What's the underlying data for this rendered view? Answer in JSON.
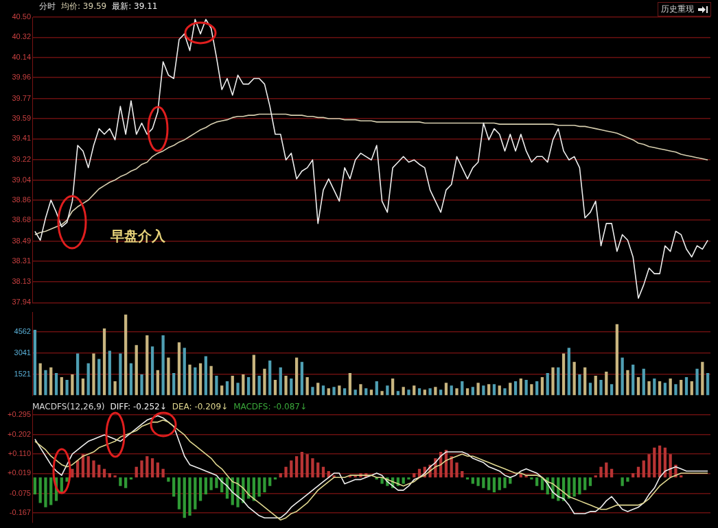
{
  "chart_data": [
    {
      "type": "line",
      "title": "分时",
      "legend": "top left",
      "grid": "y",
      "tick_labels": "y",
      "marker": "none",
      "annotations": [
        "早盘介入",
        "历史重现"
      ],
      "categories": [
        null,
        null,
        null,
        null,
        null,
        null,
        null,
        null,
        null,
        null,
        null,
        null,
        null,
        null,
        null,
        null,
        null,
        null,
        null,
        null,
        null,
        null,
        null,
        null,
        null,
        null,
        null,
        null,
        null,
        null,
        null,
        null,
        null,
        null,
        null,
        null,
        null,
        null,
        null,
        null,
        null,
        null,
        null,
        null,
        null,
        null,
        null,
        null,
        null,
        null,
        null,
        null,
        null,
        null,
        null,
        null,
        null,
        null,
        null,
        null,
        null,
        null,
        null,
        null,
        null,
        null,
        null,
        null,
        null,
        null,
        null,
        null,
        null,
        null,
        null,
        null,
        null,
        null,
        null,
        null,
        null,
        null,
        null,
        null,
        null,
        null,
        null,
        null,
        null,
        null,
        null,
        null,
        null,
        null,
        null,
        null,
        null,
        null,
        null,
        null,
        null,
        null,
        null,
        null,
        null,
        null,
        null,
        null,
        null,
        null,
        null,
        null,
        null,
        null,
        null,
        null,
        null,
        null,
        null,
        null,
        null,
        null,
        null,
        null,
        null,
        null,
        null
      ],
      "ylim": [
        37.94,
        40.5
      ],
      "yticks": [
        {
          "value": 40.5,
          "label": "40.50"
        },
        40.32,
        40.14,
        39.96,
        39.77,
        39.59,
        39.41,
        39.22,
        39.04,
        38.86,
        38.68,
        38.49,
        38.31,
        38.13,
        37.94
      ],
      "series": [
        {
          "name": "均价: 39.59",
          "color": "#d8d0b0",
          "values": [
            38.55,
            38.57,
            38.58,
            38.6,
            38.62,
            38.64,
            38.68,
            38.76,
            38.8,
            38.83,
            38.86,
            38.91,
            38.96,
            38.99,
            39.02,
            39.04,
            39.07,
            39.09,
            39.12,
            39.14,
            39.18,
            39.2,
            39.25,
            39.28,
            39.3,
            39.33,
            39.35,
            39.38,
            39.4,
            39.43,
            39.46,
            39.49,
            39.51,
            39.54,
            39.56,
            39.57,
            39.58,
            39.6,
            39.61,
            39.61,
            39.62,
            39.62,
            39.63,
            39.63,
            39.63,
            39.63,
            39.63,
            39.63,
            39.62,
            39.62,
            39.62,
            39.61,
            39.61,
            39.6,
            39.6,
            39.59,
            39.59,
            39.59,
            39.58,
            39.58,
            39.58,
            39.57,
            39.57,
            39.57,
            39.56,
            39.56,
            39.56,
            39.56,
            39.56,
            39.56,
            39.56,
            39.56,
            39.56,
            39.55,
            39.55,
            39.55,
            39.55,
            39.55,
            39.55,
            39.55,
            39.55,
            39.55,
            39.55,
            39.55,
            39.55,
            39.55,
            39.55,
            39.54,
            39.54,
            39.54,
            39.54,
            39.54,
            39.54,
            39.54,
            39.54,
            39.54,
            39.54,
            39.54,
            39.53,
            39.53,
            39.53,
            39.53,
            39.52,
            39.52,
            39.51,
            39.5,
            39.49,
            39.48,
            39.47,
            39.46,
            39.44,
            39.42,
            39.4,
            39.37,
            39.36,
            39.34,
            39.33,
            39.32,
            39.31,
            39.3,
            39.29,
            39.27,
            39.26,
            39.25,
            39.24,
            39.23,
            39.22
          ]
        },
        {
          "name": "最新: 39.11",
          "color": "#eeeeee",
          "values": [
            38.58,
            38.5,
            38.7,
            38.86,
            38.75,
            38.62,
            38.66,
            38.85,
            39.35,
            39.3,
            39.15,
            39.35,
            39.5,
            39.45,
            39.5,
            39.4,
            39.7,
            39.45,
            39.75,
            39.45,
            39.55,
            39.45,
            39.5,
            39.65,
            40.1,
            39.98,
            39.95,
            40.3,
            40.35,
            40.2,
            40.48,
            40.35,
            40.48,
            40.4,
            40.14,
            39.85,
            39.95,
            39.8,
            39.98,
            39.9,
            39.9,
            39.95,
            39.95,
            39.9,
            39.7,
            39.45,
            39.45,
            39.22,
            39.28,
            39.05,
            39.12,
            39.15,
            39.22,
            38.65,
            38.95,
            39.05,
            38.95,
            38.85,
            39.15,
            39.05,
            39.22,
            39.28,
            39.25,
            39.22,
            39.35,
            38.85,
            38.75,
            39.15,
            39.2,
            39.25,
            39.2,
            39.22,
            39.18,
            39.15,
            38.95,
            38.85,
            38.75,
            38.95,
            39.0,
            39.25,
            39.15,
            39.05,
            39.15,
            39.2,
            39.55,
            39.4,
            39.5,
            39.45,
            39.3,
            39.45,
            39.3,
            39.45,
            39.3,
            39.2,
            39.25,
            39.25,
            39.2,
            39.4,
            39.5,
            39.3,
            39.22,
            39.25,
            39.15,
            38.7,
            38.75,
            38.85,
            38.45,
            38.65,
            38.65,
            38.4,
            38.55,
            38.5,
            38.35,
            37.98,
            38.1,
            38.25,
            38.2,
            38.2,
            38.45,
            38.4,
            38.58,
            38.55,
            38.42,
            38.35,
            38.45,
            38.42,
            38.5
          ]
        }
      ]
    },
    {
      "type": "bar",
      "grid": "y",
      "tick_labels": "y",
      "categories": [
        null,
        null,
        null,
        null,
        null,
        null,
        null,
        null,
        null,
        null,
        null,
        null,
        null,
        null,
        null,
        null,
        null,
        null,
        null,
        null,
        null,
        null,
        null,
        null,
        null,
        null,
        null,
        null,
        null,
        null,
        null,
        null,
        null,
        null,
        null,
        null,
        null,
        null,
        null,
        null,
        null,
        null,
        null,
        null,
        null,
        null,
        null,
        null,
        null,
        null,
        null,
        null,
        null,
        null,
        null,
        null,
        null,
        null,
        null,
        null,
        null,
        null,
        null,
        null,
        null,
        null,
        null,
        null,
        null,
        null,
        null,
        null,
        null,
        null,
        null,
        null,
        null,
        null,
        null,
        null,
        null,
        null,
        null,
        null,
        null,
        null,
        null,
        null,
        null,
        null,
        null,
        null,
        null,
        null,
        null,
        null,
        null,
        null,
        null,
        null,
        null,
        null,
        null,
        null,
        null,
        null,
        null,
        null,
        null,
        null,
        null,
        null,
        null,
        null,
        null,
        null,
        null,
        null,
        null,
        null,
        null,
        null,
        null,
        null,
        null,
        null,
        null
      ],
      "ylim": [
        0,
        5950
      ],
      "yticks": [
        1521,
        3041,
        4562
      ],
      "values": [
        4700,
        2300,
        1800,
        2000,
        1600,
        1300,
        1100,
        1500,
        3000,
        1200,
        2300,
        3000,
        2600,
        4800,
        3200,
        1000,
        3000,
        5800,
        2300,
        3600,
        1500,
        4300,
        3500,
        1800,
        4300,
        2700,
        1600,
        3800,
        3400,
        2200,
        2000,
        2300,
        2800,
        2100,
        1400,
        700,
        1000,
        1400,
        900,
        1500,
        1300,
        2900,
        1400,
        1900,
        2500,
        1100,
        2000,
        1400,
        1200,
        2700,
        2400,
        1300,
        600,
        900,
        700,
        500,
        600,
        700,
        500,
        1600,
        400,
        800,
        500,
        400,
        1000,
        300,
        700,
        1200,
        300,
        600,
        400,
        700,
        500,
        400,
        500,
        600,
        400,
        900,
        700,
        500,
        1000,
        500,
        600,
        900,
        700,
        800,
        800,
        700,
        500,
        900,
        1000,
        1200,
        1100,
        800,
        1000,
        1300,
        1600,
        2000,
        2000,
        3000,
        3400,
        2400,
        1500,
        2000,
        900,
        1400,
        1100,
        1700,
        800,
        5100,
        2700,
        1800,
        2200,
        1300,
        1900,
        1000,
        1200,
        1000,
        900,
        1200,
        800,
        1100,
        1300,
        1000,
        1900,
        2400,
        1600
      ],
      "colors": [
        "#4f9fb3",
        "#c8b57f",
        "#4f9fb3",
        "#c8b57f",
        "#4f9fb3",
        "#c8b57f",
        "#4f9fb3",
        "#c8b57f",
        "#4f9fb3",
        "#c8b57f",
        "#4f9fb3",
        "#c8b57f",
        "#4f9fb3",
        "#c8b57f",
        "#4f9fb3",
        "#c8b57f",
        "#4f9fb3",
        "#c8b57f",
        "#4f9fb3",
        "#c8b57f",
        "#4f9fb3",
        "#c8b57f",
        "#4f9fb3",
        "#c8b57f",
        "#4f9fb3",
        "#c8b57f",
        "#4f9fb3",
        "#c8b57f",
        "#4f9fb3",
        "#c8b57f",
        "#4f9fb3",
        "#c8b57f",
        "#4f9fb3",
        "#c8b57f",
        "#4f9fb3",
        "#c8b57f",
        "#4f9fb3",
        "#c8b57f",
        "#4f9fb3",
        "#c8b57f",
        "#4f9fb3",
        "#c8b57f",
        "#4f9fb3",
        "#c8b57f",
        "#4f9fb3",
        "#c8b57f",
        "#4f9fb3",
        "#c8b57f",
        "#4f9fb3",
        "#c8b57f",
        "#4f9fb3",
        "#c8b57f",
        "#4f9fb3",
        "#c8b57f",
        "#4f9fb3",
        "#c8b57f",
        "#4f9fb3",
        "#c8b57f",
        "#4f9fb3",
        "#c8b57f",
        "#4f9fb3",
        "#c8b57f",
        "#4f9fb3",
        "#c8b57f",
        "#4f9fb3",
        "#c8b57f",
        "#4f9fb3",
        "#c8b57f",
        "#4f9fb3",
        "#c8b57f",
        "#4f9fb3",
        "#c8b57f",
        "#4f9fb3",
        "#c8b57f",
        "#4f9fb3",
        "#c8b57f",
        "#4f9fb3",
        "#c8b57f",
        "#4f9fb3",
        "#c8b57f",
        "#4f9fb3",
        "#c8b57f",
        "#4f9fb3",
        "#c8b57f",
        "#4f9fb3",
        "#c8b57f",
        "#4f9fb3",
        "#c8b57f",
        "#4f9fb3",
        "#c8b57f",
        "#4f9fb3",
        "#c8b57f",
        "#4f9fb3",
        "#c8b57f",
        "#4f9fb3",
        "#c8b57f",
        "#4f9fb3",
        "#c8b57f",
        "#4f9fb3",
        "#c8b57f",
        "#4f9fb3",
        "#c8b57f",
        "#4f9fb3",
        "#c8b57f",
        "#4f9fb3",
        "#c8b57f",
        "#4f9fb3",
        "#c8b57f",
        "#4f9fb3",
        "#c8b57f",
        "#4f9fb3",
        "#c8b57f",
        "#4f9fb3",
        "#c8b57f",
        "#4f9fb3",
        "#c8b57f",
        "#4f9fb3",
        "#c8b57f",
        "#4f9fb3",
        "#c8b57f",
        "#4f9fb3",
        "#c8b57f",
        "#4f9fb3",
        "#c8b57f",
        "#4f9fb3",
        "#c8b57f",
        "#4f9fb3"
      ]
    },
    {
      "type": "bar",
      "title": "MACDFS(12,26,9)",
      "legend": "top left",
      "grid": "y",
      "tick_labels": "y",
      "marker": "none",
      "categories": [
        null,
        null,
        null,
        null,
        null,
        null,
        null,
        null,
        null,
        null,
        null,
        null,
        null,
        null,
        null,
        null,
        null,
        null,
        null,
        null,
        null,
        null,
        null,
        null,
        null,
        null,
        null,
        null,
        null,
        null,
        null,
        null,
        null,
        null,
        null,
        null,
        null,
        null,
        null,
        null,
        null,
        null,
        null,
        null,
        null,
        null,
        null,
        null,
        null,
        null,
        null,
        null,
        null,
        null,
        null,
        null,
        null,
        null,
        null,
        null,
        null,
        null,
        null,
        null,
        null,
        null,
        null,
        null,
        null,
        null,
        null,
        null,
        null,
        null,
        null,
        null,
        null,
        null,
        null,
        null,
        null,
        null,
        null,
        null,
        null,
        null,
        null,
        null,
        null,
        null,
        null,
        null,
        null,
        null,
        null,
        null,
        null,
        null,
        null,
        null,
        null,
        null,
        null,
        null,
        null,
        null,
        null,
        null,
        null,
        null,
        null,
        null,
        null,
        null,
        null,
        null,
        null,
        null,
        null,
        null,
        null,
        null,
        null,
        null,
        null,
        null,
        null
      ],
      "ylim": [
        -0.21,
        0.32
      ],
      "yticks": [
        {
          "value": 0.295,
          "label": "+0.295"
        },
        {
          "value": 0.202,
          "label": "+0.202"
        },
        {
          "value": 0.11,
          "label": "+0.110"
        },
        {
          "value": 0.019,
          "label": "+0.019"
        },
        -0.075,
        -0.167
      ],
      "series": [
        {
          "name": "DIFF: -0.252↓",
          "type": "line",
          "color": "#f0f0f0",
          "values": [
            0.18,
            0.14,
            0.1,
            0.06,
            0.03,
            0.01,
            0.06,
            0.11,
            0.13,
            0.15,
            0.17,
            0.18,
            0.19,
            0.2,
            0.19,
            0.18,
            0.17,
            0.19,
            0.21,
            0.23,
            0.25,
            0.27,
            0.28,
            0.29,
            0.28,
            0.26,
            0.24,
            0.17,
            0.1,
            0.06,
            0.05,
            0.04,
            0.03,
            0.02,
            0.01,
            -0.02,
            -0.04,
            -0.07,
            -0.09,
            -0.11,
            -0.14,
            -0.16,
            -0.18,
            -0.19,
            -0.19,
            -0.19,
            -0.19,
            -0.17,
            -0.14,
            -0.12,
            -0.1,
            -0.08,
            -0.06,
            -0.04,
            -0.02,
            0.0,
            0.02,
            0.02,
            -0.03,
            -0.02,
            -0.01,
            -0.01,
            0.0,
            0.01,
            0.02,
            0.01,
            -0.02,
            -0.04,
            -0.06,
            -0.06,
            -0.04,
            -0.01,
            0.0,
            0.02,
            0.05,
            0.07,
            0.1,
            0.12,
            0.12,
            0.12,
            0.12,
            0.11,
            0.09,
            0.08,
            0.07,
            0.05,
            0.04,
            0.03,
            0.01,
            0.0,
            0.01,
            0.03,
            0.04,
            0.03,
            0.02,
            0.0,
            -0.03,
            -0.07,
            -0.09,
            -0.1,
            -0.13,
            -0.17,
            -0.17,
            -0.17,
            -0.16,
            -0.16,
            -0.14,
            -0.11,
            -0.09,
            -0.12,
            -0.15,
            -0.16,
            -0.15,
            -0.14,
            -0.12,
            -0.08,
            -0.05,
            0.0,
            0.03,
            0.04,
            0.05,
            0.04,
            0.03,
            0.03,
            0.03,
            0.03,
            0.03
          ]
        },
        {
          "name": "DEA: -0.209↓",
          "type": "line",
          "color": "#e0d890",
          "values": [
            0.17,
            0.15,
            0.13,
            0.1,
            0.08,
            0.06,
            0.05,
            0.06,
            0.08,
            0.1,
            0.11,
            0.12,
            0.14,
            0.15,
            0.16,
            0.17,
            0.19,
            0.2,
            0.21,
            0.22,
            0.24,
            0.25,
            0.26,
            0.26,
            0.27,
            0.26,
            0.24,
            0.22,
            0.2,
            0.17,
            0.15,
            0.13,
            0.11,
            0.09,
            0.06,
            0.04,
            0.01,
            -0.02,
            -0.03,
            -0.05,
            -0.08,
            -0.1,
            -0.12,
            -0.14,
            -0.16,
            -0.18,
            -0.2,
            -0.19,
            -0.17,
            -0.16,
            -0.14,
            -0.12,
            -0.09,
            -0.06,
            -0.04,
            -0.02,
            0.0,
            0.0,
            0.0,
            0.01,
            0.01,
            0.01,
            0.01,
            0.01,
            0.0,
            0.0,
            -0.01,
            -0.02,
            -0.03,
            -0.04,
            -0.03,
            -0.02,
            0.0,
            0.01,
            0.03,
            0.05,
            0.06,
            0.08,
            0.09,
            0.1,
            0.11,
            0.1,
            0.1,
            0.09,
            0.08,
            0.07,
            0.06,
            0.05,
            0.04,
            0.03,
            0.02,
            0.02,
            0.01,
            0.01,
            0.01,
            0.0,
            -0.02,
            -0.03,
            -0.05,
            -0.07,
            -0.09,
            -0.1,
            -0.11,
            -0.12,
            -0.13,
            -0.14,
            -0.15,
            -0.15,
            -0.14,
            -0.13,
            -0.13,
            -0.13,
            -0.13,
            -0.13,
            -0.12,
            -0.1,
            -0.07,
            -0.04,
            -0.02,
            0.0,
            0.01,
            0.02,
            0.02,
            0.02,
            0.02,
            0.02,
            0.02
          ]
        },
        {
          "name": "MACDFS: -0.087↓",
          "color": "#3aa83a",
          "values": [
            -0.08,
            -0.12,
            -0.14,
            -0.13,
            -0.11,
            -0.07,
            -0.02,
            0.04,
            0.08,
            0.11,
            0.1,
            0.08,
            0.06,
            0.04,
            0.02,
            0.01,
            -0.04,
            -0.05,
            -0.01,
            0.05,
            0.08,
            0.1,
            0.09,
            0.07,
            0.04,
            -0.02,
            -0.09,
            -0.15,
            -0.19,
            -0.18,
            -0.15,
            -0.11,
            -0.08,
            -0.06,
            -0.05,
            -0.07,
            -0.1,
            -0.13,
            -0.14,
            -0.12,
            -0.1,
            -0.11,
            -0.09,
            -0.07,
            -0.04,
            -0.01,
            0.02,
            0.05,
            0.08,
            0.1,
            0.12,
            0.11,
            0.09,
            0.07,
            0.05,
            0.03,
            0.01,
            0.0,
            0.0,
            0.01,
            0.01,
            0.02,
            0.02,
            null,
            -0.01,
            -0.03,
            -0.04,
            -0.05,
            -0.04,
            -0.03,
            -0.01,
            0.02,
            0.04,
            0.05,
            0.06,
            0.09,
            0.12,
            0.13,
            0.1,
            0.07,
            0.03,
            -0.01,
            -0.03,
            -0.04,
            -0.05,
            -0.06,
            -0.07,
            -0.06,
            -0.05,
            -0.03,
            0.0,
            0.02,
            0.01,
            -0.01,
            -0.04,
            -0.06,
            -0.08,
            -0.1,
            -0.11,
            -0.11,
            -0.1,
            -0.09,
            -0.08,
            -0.06,
            -0.04,
            0.01,
            0.05,
            0.07,
            0.04,
            0.0,
            -0.04,
            -0.02,
            0.02,
            0.05,
            0.08,
            0.11,
            0.14,
            0.15,
            0.14,
            0.11,
            0.06,
            0.01,
            0.0,
            0.0,
            0.0,
            0.0,
            0.0
          ],
          "colors": [
            "#2f9a35",
            "#2f9a35",
            "#2f9a35",
            "#2f9a35",
            "#2f9a35",
            "#2f9a35",
            "#2f9a35",
            "#b83434",
            "#b83434",
            "#b83434",
            "#b83434",
            "#b83434",
            "#b83434",
            "#b83434",
            "#b83434",
            "#b83434",
            "#2f9a35",
            "#2f9a35",
            "#2f9a35",
            "#b83434",
            "#b83434",
            "#b83434",
            "#b83434",
            "#b83434",
            "#b83434",
            "#2f9a35",
            "#2f9a35",
            "#2f9a35",
            "#2f9a35",
            "#2f9a35",
            "#2f9a35",
            "#2f9a35",
            "#2f9a35",
            "#2f9a35",
            "#2f9a35",
            "#2f9a35",
            "#2f9a35",
            "#2f9a35",
            "#2f9a35",
            "#2f9a35",
            "#2f9a35",
            "#2f9a35",
            "#2f9a35",
            "#2f9a35",
            "#2f9a35",
            "#2f9a35",
            "#b83434",
            "#b83434",
            "#b83434",
            "#b83434",
            "#b83434",
            "#b83434",
            "#b83434",
            "#b83434",
            "#b83434",
            "#b83434",
            "#b83434",
            "#b83434",
            "#b83434",
            "#b83434",
            "#b83434",
            "#b83434",
            "#b83434",
            "#b83434",
            "#2f9a35",
            "#2f9a35",
            "#2f9a35",
            "#2f9a35",
            "#2f9a35",
            "#2f9a35",
            "#2f9a35",
            "#b83434",
            "#b83434",
            "#b83434",
            "#b83434",
            "#b83434",
            "#b83434",
            "#b83434",
            "#b83434",
            "#b83434",
            "#b83434",
            "#2f9a35",
            "#2f9a35",
            "#2f9a35",
            "#2f9a35",
            "#2f9a35",
            "#2f9a35",
            "#2f9a35",
            "#2f9a35",
            "#2f9a35",
            "#b83434",
            "#b83434",
            "#b83434",
            "#2f9a35",
            "#2f9a35",
            "#2f9a35",
            "#2f9a35",
            "#2f9a35",
            "#2f9a35",
            "#2f9a35",
            "#2f9a35",
            "#2f9a35",
            "#2f9a35",
            "#2f9a35",
            "#2f9a35",
            "#b83434",
            "#b83434",
            "#b83434",
            "#b83434",
            "#b83434",
            "#2f9a35",
            "#2f9a35",
            "#b83434",
            "#b83434",
            "#b83434",
            "#b83434",
            "#b83434",
            "#b83434",
            "#b83434",
            "#b83434",
            "#b83434",
            "#b83434",
            "#b83434",
            "#b83434",
            "#b83434",
            "#b83434",
            "#b83434"
          ]
        }
      ]
    }
  ]
}
